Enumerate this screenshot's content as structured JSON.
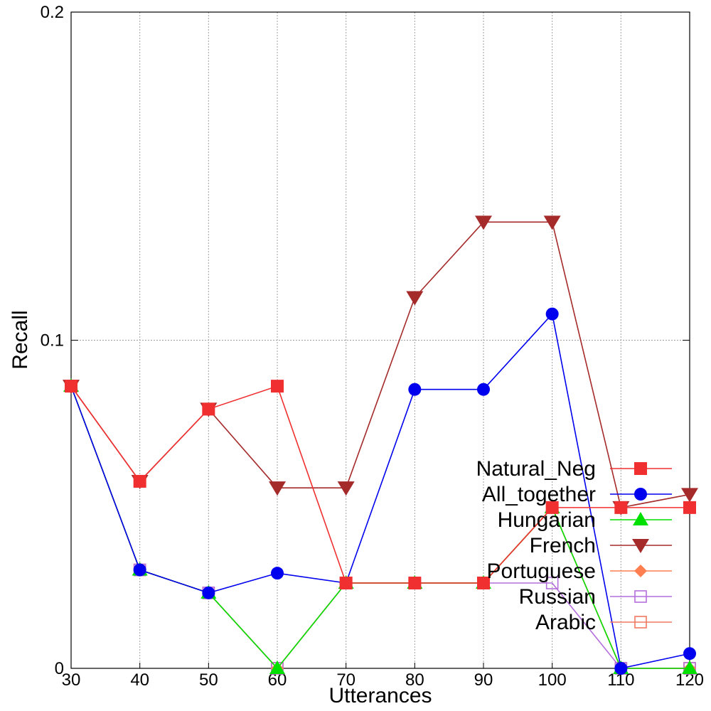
{
  "chart_data": {
    "type": "line",
    "title": "",
    "xlabel": "Utterances",
    "ylabel": "Recall",
    "x": [
      30,
      40,
      50,
      60,
      70,
      80,
      90,
      100,
      110,
      120
    ],
    "xlim": [
      30,
      120
    ],
    "ylim": [
      0,
      0.2
    ],
    "x_ticks": [
      "30",
      "40",
      "50",
      "60",
      "70",
      "80",
      "90",
      "100",
      "110",
      "120"
    ],
    "y_ticks": [
      {
        "value": 0,
        "label": "0"
      },
      {
        "value": 0.1,
        "label": "0.1"
      },
      {
        "value": 0.2,
        "label": "0.2"
      }
    ],
    "grid": true,
    "legend_position": "right",
    "series": [
      {
        "name": "Natural_Neg",
        "color": "#f03030",
        "marker": "square-filled",
        "values": [
          0.086,
          0.057,
          0.079,
          0.086,
          0.026,
          0.026,
          0.026,
          0.049,
          0.049,
          0.049
        ]
      },
      {
        "name": "All_together",
        "color": "#0000ee",
        "marker": "circle-filled",
        "values": [
          0.086,
          0.03,
          0.023,
          0.029,
          0.026,
          0.085,
          0.085,
          0.108,
          0.0,
          0.0045
        ]
      },
      {
        "name": "Hungarian",
        "color": "#00e000",
        "marker": "triangle-up-filled",
        "values": [
          0.086,
          0.03,
          0.023,
          0.0,
          0.026,
          0.026,
          0.026,
          0.049,
          0.0,
          0.0
        ]
      },
      {
        "name": "French",
        "color": "#a52a2a",
        "marker": "triangle-down-filled",
        "values": [
          0.086,
          0.057,
          0.079,
          0.055,
          0.055,
          0.113,
          0.136,
          0.136,
          0.049,
          0.053
        ]
      },
      {
        "name": "Portuguese",
        "color": "#ff7f50",
        "marker": "diamond-filled",
        "values": [
          0.086,
          0.03,
          0.023,
          0.0,
          0.026,
          0.026,
          0.026,
          0.049,
          0.0,
          0.0
        ]
      },
      {
        "name": "Russian",
        "color": "#b46edc",
        "marker": "square-open",
        "values": [
          0.086,
          0.03,
          0.023,
          0.0,
          0.026,
          0.026,
          0.026,
          0.026,
          0.0,
          0.0
        ]
      },
      {
        "name": "Arabic",
        "color": "#f07860",
        "marker": "square-open",
        "values": [
          0.086,
          0.03,
          0.023,
          0.0,
          0.026,
          0.026,
          0.026,
          0.049,
          0.0,
          0.0
        ]
      }
    ]
  }
}
